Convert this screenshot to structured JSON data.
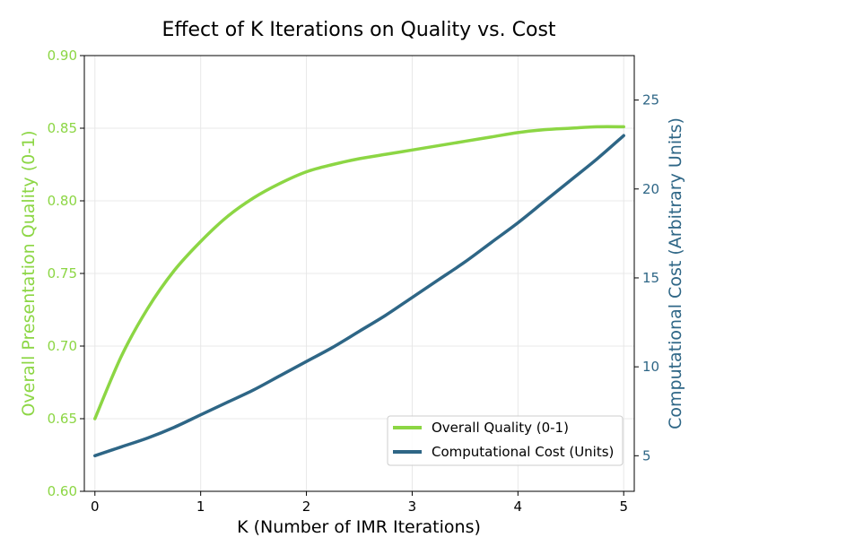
{
  "chart_data": {
    "type": "line",
    "title": "Effect of K Iterations on Quality vs. Cost",
    "xlabel": "K (Number of IMR Iterations)",
    "ylabel_left": "Overall Presentation Quality (0-1)",
    "ylabel_right": "Computational Cost (Arbitrary Units)",
    "xlim": [
      -0.1,
      5.1
    ],
    "ylim_left": [
      0.6,
      0.9
    ],
    "ylim_right": [
      3.0,
      27.5
    ],
    "x_ticks": [
      "0",
      "1",
      "2",
      "3",
      "4",
      "5"
    ],
    "y_left_ticks": [
      "0.60",
      "0.65",
      "0.70",
      "0.75",
      "0.80",
      "0.85",
      "0.90"
    ],
    "y_right_ticks": [
      "5",
      "10",
      "15",
      "20",
      "25"
    ],
    "grid": true,
    "legend_placement": "lower-right",
    "series": [
      {
        "name": "Overall Quality (0-1)",
        "axis": "left",
        "color": "#8cd644",
        "x": [
          0,
          0.25,
          0.5,
          0.75,
          1.0,
          1.25,
          1.5,
          1.75,
          2.0,
          2.25,
          2.5,
          2.75,
          3.0,
          3.25,
          3.5,
          3.75,
          4.0,
          4.25,
          4.5,
          4.75,
          5.0
        ],
        "values": [
          0.65,
          0.693,
          0.726,
          0.752,
          0.772,
          0.789,
          0.802,
          0.812,
          0.82,
          0.825,
          0.829,
          0.832,
          0.835,
          0.838,
          0.841,
          0.844,
          0.847,
          0.849,
          0.85,
          0.851,
          0.851
        ]
      },
      {
        "name": "Computational Cost (Units)",
        "axis": "right",
        "color": "#2e6686",
        "x": [
          0,
          0.25,
          0.5,
          0.75,
          1.0,
          1.25,
          1.5,
          1.75,
          2.0,
          2.25,
          2.5,
          2.75,
          3.0,
          3.25,
          3.5,
          3.75,
          4.0,
          4.25,
          4.5,
          4.75,
          5.0
        ],
        "values": [
          5.0,
          5.5,
          6.0,
          6.6,
          7.3,
          8.0,
          8.7,
          9.5,
          10.3,
          11.1,
          12.0,
          12.9,
          13.9,
          14.9,
          15.9,
          17.0,
          18.1,
          19.3,
          20.5,
          21.7,
          23.0
        ]
      }
    ]
  }
}
